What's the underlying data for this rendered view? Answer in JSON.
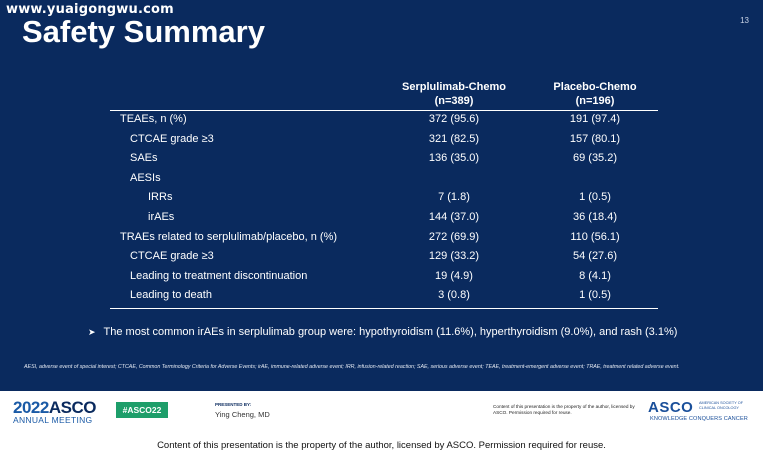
{
  "watermark": "www.yuaigongwu.com",
  "slide": {
    "title": "Safety Summary",
    "page_number": "13"
  },
  "table": {
    "columns": [
      {
        "name": "Serplulimab-Chemo",
        "n": "(n=389)"
      },
      {
        "name": "Placebo-Chemo",
        "n": "(n=196)"
      }
    ],
    "rows": [
      {
        "label": "TEAEs, n (%)",
        "v1": "372 (95.6)",
        "v2": "191 (97.4)"
      },
      {
        "label": "CTCAE grade ≥3",
        "v1": "321 (82.5)",
        "v2": "157 (80.1)"
      },
      {
        "label": "SAEs",
        "v1": "136 (35.0)",
        "v2": "69 (35.2)"
      },
      {
        "label": "AESIs",
        "v1": "",
        "v2": ""
      },
      {
        "label": "IRRs",
        "v1": "7 (1.8)",
        "v2": "1 (0.5)"
      },
      {
        "label": "irAEs",
        "v1": "144 (37.0)",
        "v2": "36 (18.4)"
      },
      {
        "label": "TRAEs related to serplulimab/placebo, n (%)",
        "v1": "272 (69.9)",
        "v2": "110 (56.1)"
      },
      {
        "label": "CTCAE grade ≥3",
        "v1": "129 (33.2)",
        "v2": "54 (27.6)"
      },
      {
        "label": "Leading to treatment discontinuation",
        "v1": "19 (4.9)",
        "v2": "8 (4.1)"
      },
      {
        "label": "Leading to death",
        "v1": "3 (0.8)",
        "v2": "1 (0.5)"
      }
    ]
  },
  "bullet": {
    "arrow": "➤",
    "text": "The most common irAEs in serplulimab group were: hypothyroidism (11.6%), hyperthyroidism (9.0%), and rash (3.1%)"
  },
  "footnote": "AESI, adverse event of special interest; CTCAE, Common Terminology Criteria for Adverse Events; irAE, immune-related adverse event; IRR, infusion-related reaction; SAE, serious adverse event; TEAE, treatment-emergent adverse event; TRAE, treatment related adverse event.",
  "footer": {
    "asco_year_prefix": "2022",
    "asco_year_name": "ASCO",
    "annual_meeting": "ANNUAL MEETING",
    "hashtag": "#ASCO22",
    "presented_by": "PRESENTED BY:",
    "presenter": "Ying Cheng, MD",
    "rights_small": "Content of this presentation is the property of the author, licensed by ASCO. Permission required for reuse.",
    "asco_logo": "ASCO",
    "society": "AMERICAN SOCIETY OF CLINICAL ONCOLOGY",
    "tagline": "KNOWLEDGE CONQUERS CANCER"
  },
  "bottom_note": "Content of this presentation is the property of the author, licensed by ASCO. Permission required for reuse.",
  "colors": {
    "slide_background": "#0a2a5e",
    "hashtag_green": "#1e9e6a",
    "asco_blue": "#1a4f9a"
  }
}
